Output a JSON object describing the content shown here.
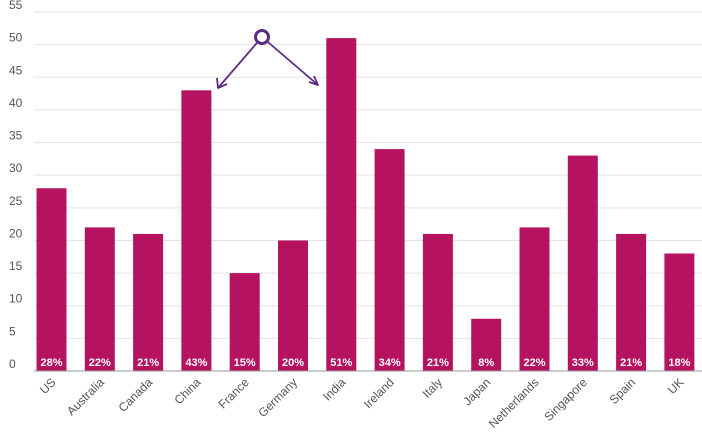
{
  "chart_data": {
    "type": "bar",
    "categories": [
      "US",
      "Australia",
      "Canada",
      "China",
      "France",
      "Germany",
      "India",
      "Ireland",
      "Italy",
      "Japan",
      "Netherlands",
      "Singapore",
      "Spain",
      "UK"
    ],
    "values": [
      28,
      22,
      21,
      43,
      15,
      20,
      51,
      34,
      21,
      8,
      22,
      33,
      21,
      18
    ],
    "data_labels": [
      "28%",
      "22%",
      "21%",
      "43%",
      "15%",
      "20%",
      "51%",
      "34%",
      "21%",
      "8%",
      "22%",
      "33%",
      "21%",
      "18%"
    ],
    "yticks": [
      0,
      5,
      10,
      15,
      20,
      25,
      30,
      35,
      40,
      45,
      50,
      55
    ],
    "ylim": [
      0,
      55
    ],
    "grid": true,
    "title": "",
    "xlabel": "",
    "ylabel": "",
    "colors": {
      "bar": "#B5135F",
      "annotation": "#5B2C83",
      "grid": "#e3e3e3",
      "axis": "#999999"
    }
  }
}
